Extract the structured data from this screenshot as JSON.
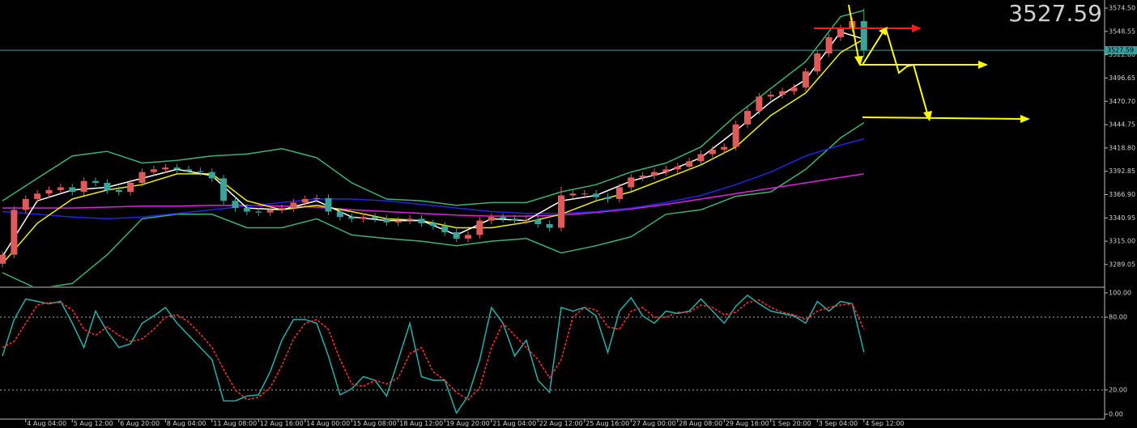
{
  "chart_data": [
    {
      "type": "candlestick",
      "categories": [
        null,
        null,
        "4 Aug 04:00",
        null,
        null,
        null,
        "5 Aug 12:00",
        null,
        null,
        null,
        "6 Aug 20:00",
        null,
        null,
        null,
        "8 Aug 04:00",
        null,
        null,
        null,
        "11 Aug 08:00",
        null,
        null,
        null,
        "12 Aug 16:00",
        null,
        null,
        null,
        "14 Aug 00:00",
        null,
        null,
        null,
        "15 Aug 08:00",
        null,
        null,
        null,
        "18 Aug 12:00",
        null,
        null,
        null,
        "19 Aug 20:00",
        null,
        null,
        null,
        "21 Aug 04:00",
        null,
        null,
        null,
        "22 Aug 12:00",
        null,
        null,
        null,
        "25 Aug 16:00",
        null,
        null,
        null,
        "27 Aug 00:00",
        null,
        null,
        null,
        "28 Aug 08:00",
        null,
        null,
        null,
        "29 Aug 16:00",
        null,
        null,
        null,
        "1 Sep 20:00",
        null,
        null,
        null,
        "3 Sep 04:00",
        null,
        null,
        null,
        "4 Sep 12:00"
      ],
      "open": [
        3290,
        3300,
        3350,
        3362,
        3368,
        3372,
        3375,
        3370,
        3382,
        3380,
        3372,
        3370,
        3380,
        3392,
        3395,
        3397,
        3395,
        3393,
        3392,
        3385,
        3360,
        3352,
        3348,
        3347,
        3350,
        3352,
        3358,
        3362,
        3363,
        3348,
        3342,
        3340,
        3342,
        3340,
        3336,
        3338,
        3340,
        3335,
        3332,
        3325,
        3318,
        3322,
        3338,
        3342,
        3340,
        3338,
        3339,
        3334,
        3330,
        3366,
        3368,
        3368,
        3364,
        3362,
        3375,
        3386,
        3388,
        3392,
        3395,
        3398,
        3404,
        3412,
        3417,
        3420,
        3445,
        3460,
        3476,
        3478,
        3482,
        3486,
        3504,
        3524,
        3542,
        3552,
        3560
      ],
      "high": [
        3304,
        3354,
        3366,
        3372,
        3376,
        3379,
        3379,
        3386,
        3386,
        3384,
        3376,
        3384,
        3396,
        3399,
        3401,
        3401,
        3399,
        3397,
        3396,
        3389,
        3364,
        3356,
        3352,
        3354,
        3356,
        3362,
        3366,
        3367,
        3367,
        3352,
        3346,
        3346,
        3346,
        3344,
        3342,
        3344,
        3344,
        3339,
        3336,
        3329,
        3326,
        3342,
        3346,
        3346,
        3344,
        3343,
        3343,
        3338,
        3376,
        3372,
        3372,
        3372,
        3368,
        3379,
        3390,
        3392,
        3396,
        3399,
        3402,
        3408,
        3416,
        3421,
        3424,
        3449,
        3464,
        3480,
        3482,
        3486,
        3490,
        3508,
        3528,
        3546,
        3556,
        3564,
        3574
      ],
      "low": [
        3286,
        3296,
        3346,
        3358,
        3364,
        3368,
        3366,
        3366,
        3376,
        3368,
        3366,
        3366,
        3376,
        3388,
        3391,
        3391,
        3389,
        3388,
        3381,
        3356,
        3348,
        3344,
        3343,
        3343,
        3346,
        3348,
        3354,
        3358,
        3344,
        3338,
        3336,
        3336,
        3336,
        3332,
        3332,
        3334,
        3331,
        3328,
        3321,
        3314,
        3314,
        3318,
        3334,
        3336,
        3334,
        3334,
        3330,
        3326,
        3326,
        3362,
        3364,
        3360,
        3358,
        3358,
        3371,
        3382,
        3384,
        3388,
        3391,
        3394,
        3400,
        3408,
        3413,
        3416,
        3441,
        3456,
        3472,
        3474,
        3478,
        3482,
        3500,
        3520,
        3538,
        3548,
        3520
      ],
      "close": [
        3300,
        3350,
        3362,
        3368,
        3372,
        3375,
        3370,
        3382,
        3380,
        3372,
        3370,
        3380,
        3392,
        3395,
        3397,
        3395,
        3393,
        3392,
        3385,
        3360,
        3352,
        3348,
        3347,
        3350,
        3352,
        3358,
        3362,
        3363,
        3348,
        3342,
        3340,
        3342,
        3340,
        3336,
        3338,
        3340,
        3335,
        3332,
        3325,
        3318,
        3322,
        3338,
        3342,
        3340,
        3338,
        3339,
        3334,
        3330,
        3366,
        3368,
        3368,
        3364,
        3362,
        3375,
        3386,
        3388,
        3392,
        3395,
        3398,
        3404,
        3412,
        3417,
        3420,
        3445,
        3460,
        3476,
        3478,
        3482,
        3486,
        3504,
        3524,
        3542,
        3552,
        3560,
        3527.59
      ],
      "up_color": "#e05a5a",
      "down_color": "#3aa39a",
      "series": [
        {
          "color": "#3cb371",
          "x": [
            0,
            3,
            6,
            9,
            12,
            15,
            18,
            21,
            24,
            27,
            30,
            33,
            36,
            39,
            42,
            45,
            48,
            51,
            54,
            57,
            60,
            63,
            66,
            69,
            72,
            74
          ],
          "values": [
            3360,
            3385,
            3410,
            3415,
            3402,
            3405,
            3410,
            3412,
            3418,
            3408,
            3380,
            3362,
            3360,
            3355,
            3358,
            3358,
            3370,
            3378,
            3392,
            3402,
            3420,
            3455,
            3485,
            3515,
            3565,
            3572
          ]
        },
        {
          "color": "#3cb371",
          "x": [
            0,
            3,
            6,
            9,
            12,
            15,
            18,
            21,
            24,
            27,
            30,
            33,
            36,
            39,
            42,
            45,
            48,
            51,
            54,
            57,
            60,
            63,
            66,
            69,
            72,
            74
          ],
          "values": [
            3280,
            3262,
            3268,
            3300,
            3340,
            3345,
            3345,
            3330,
            3330,
            3340,
            3322,
            3318,
            3315,
            3310,
            3315,
            3318,
            3302,
            3310,
            3320,
            3345,
            3350,
            3365,
            3370,
            3395,
            3430,
            3447
          ]
        },
        {
          "color": "#e020e0",
          "x": [
            0,
            3,
            6,
            9,
            12,
            15,
            18,
            21,
            24,
            27,
            30,
            33,
            36,
            39,
            42,
            45,
            48,
            51,
            54,
            57,
            60,
            63,
            66,
            69,
            72,
            74
          ],
          "values": [
            3352,
            3352,
            3352,
            3353,
            3354,
            3354,
            3355,
            3355,
            3354,
            3353,
            3350,
            3348,
            3346,
            3344,
            3343,
            3343,
            3344,
            3347,
            3351,
            3356,
            3362,
            3368,
            3374,
            3380,
            3386,
            3390
          ]
        },
        {
          "color": "#2424e8",
          "x": [
            0,
            3,
            6,
            9,
            12,
            15,
            18,
            21,
            24,
            27,
            30,
            33,
            36,
            39,
            42,
            45,
            48,
            51,
            54,
            57,
            60,
            63,
            66,
            69,
            72,
            74
          ],
          "values": [
            3348,
            3345,
            3342,
            3340,
            3342,
            3346,
            3350,
            3354,
            3358,
            3362,
            3362,
            3360,
            3356,
            3352,
            3348,
            3346,
            3346,
            3348,
            3352,
            3358,
            3366,
            3378,
            3392,
            3410,
            3422,
            3429
          ]
        },
        {
          "color": "#f0f000",
          "x": [
            0,
            3,
            6,
            9,
            12,
            15,
            18,
            21,
            24,
            27,
            30,
            33,
            36,
            39,
            42,
            45,
            48,
            51,
            54,
            57,
            60,
            63,
            66,
            69,
            72,
            74
          ],
          "values": [
            3290,
            3335,
            3362,
            3372,
            3378,
            3390,
            3390,
            3360,
            3350,
            3355,
            3348,
            3340,
            3338,
            3330,
            3330,
            3336,
            3345,
            3360,
            3370,
            3385,
            3400,
            3420,
            3455,
            3480,
            3525,
            3540
          ]
        },
        {
          "color": "#ffffff",
          "x": [
            0,
            3,
            6,
            9,
            12,
            15,
            18,
            21,
            24,
            27,
            30,
            33,
            36,
            39,
            42,
            45,
            48,
            51,
            54,
            57,
            60,
            63,
            66,
            69,
            72,
            74
          ],
          "values": [
            3298,
            3360,
            3372,
            3375,
            3385,
            3395,
            3388,
            3352,
            3350,
            3360,
            3342,
            3338,
            3338,
            3322,
            3340,
            3338,
            3360,
            3366,
            3382,
            3392,
            3408,
            3438,
            3470,
            3495,
            3548,
            3540
          ]
        }
      ],
      "ylim": [
        3264.7,
        3583.5
      ],
      "yticks": [
        {
          "value": 3574.5,
          "label": "3574.50"
        },
        {
          "value": 3548.55,
          "label": "3548.55"
        },
        {
          "value": 3522.6,
          "label": "3522.60"
        },
        {
          "value": 3496.65,
          "label": "3496.65"
        },
        {
          "value": 3470.7,
          "label": "3470.70"
        },
        {
          "value": 3444.75,
          "label": "3444.75"
        },
        {
          "value": 3418.8,
          "label": "3418.80"
        },
        {
          "value": 3392.85,
          "label": "3392.85"
        },
        {
          "value": 3366.9,
          "label": "3366.90"
        },
        {
          "value": 3340.95,
          "label": "3340.95"
        },
        {
          "value": 3315,
          "label": "3315.00"
        },
        {
          "value": 3289.05,
          "label": "3289.05"
        }
      ],
      "current_price": 3527.59,
      "current_price_color": "#3d9ea0",
      "big_price_color": "#ff0000"
    },
    {
      "type": "line",
      "series": [
        {
          "color": "#20b2aa",
          "values": [
            48,
            78,
            95,
            93,
            91,
            93,
            75,
            55,
            85,
            68,
            55,
            58,
            75,
            81,
            88,
            75,
            65,
            55,
            45,
            11,
            11,
            15,
            16,
            35,
            61,
            78,
            78,
            75,
            48,
            16,
            21,
            31,
            28,
            15,
            45,
            75,
            31,
            28,
            28,
            1,
            15,
            45,
            88,
            75,
            48,
            61,
            28,
            18,
            88,
            85,
            88,
            81,
            51,
            85,
            96,
            81,
            75,
            85,
            83,
            85,
            95,
            85,
            75,
            89,
            98,
            91,
            85,
            83,
            81,
            75,
            93,
            85,
            93,
            91,
            51
          ]
        },
        {
          "color": "#ff3030",
          "dashed": true,
          "values": [
            55,
            60,
            75,
            90,
            92,
            92,
            86,
            70,
            65,
            72,
            65,
            60,
            62,
            70,
            80,
            82,
            76,
            66,
            55,
            37,
            20,
            12,
            14,
            22,
            40,
            62,
            75,
            78,
            70,
            45,
            25,
            23,
            28,
            25,
            30,
            50,
            55,
            35,
            28,
            18,
            12,
            22,
            55,
            75,
            65,
            55,
            45,
            30,
            45,
            80,
            88,
            86,
            72,
            70,
            85,
            88,
            80,
            80,
            84,
            84,
            90,
            88,
            82,
            84,
            92,
            94,
            88,
            84,
            82,
            78,
            85,
            88,
            90,
            91,
            70
          ]
        }
      ],
      "ylim": [
        -4,
        104
      ],
      "yticks": [
        {
          "value": 100,
          "label": "100.00"
        },
        {
          "value": 80,
          "label": "80.00"
        },
        {
          "value": 20,
          "label": "20.00"
        },
        {
          "value": 0,
          "label": "0.00"
        }
      ],
      "levels": [
        80,
        20
      ]
    }
  ]
}
